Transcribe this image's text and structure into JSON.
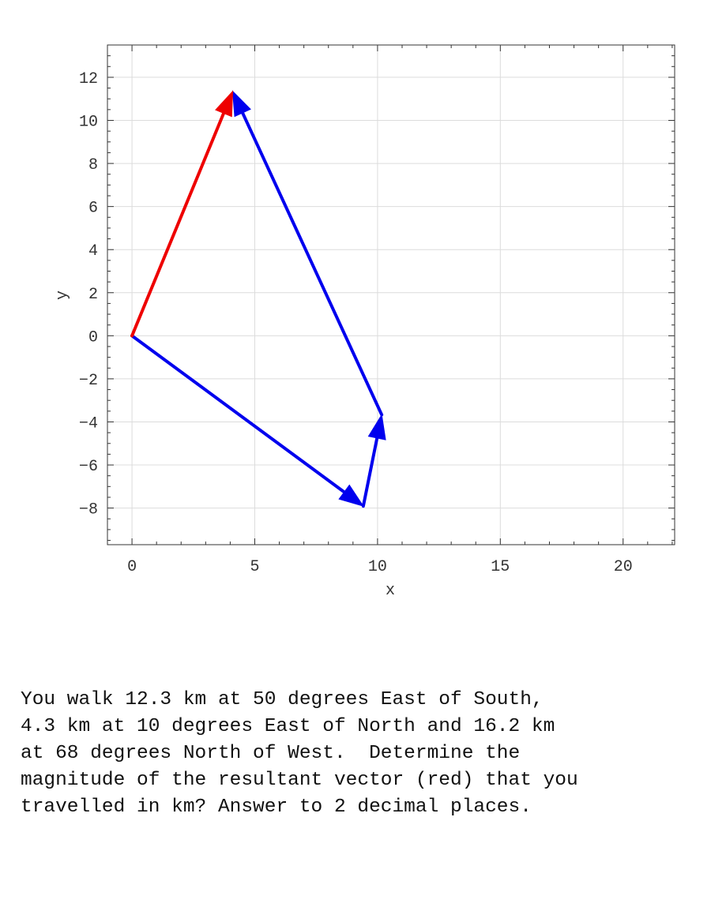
{
  "chart_data": {
    "type": "vector-plot",
    "xlabel": "x",
    "ylabel": "y",
    "xlim": [
      -1,
      22.1
    ],
    "ylim": [
      -9.7,
      13.5
    ],
    "xticks": [
      0,
      5,
      10,
      15,
      20
    ],
    "yticks": [
      -8,
      -6,
      -4,
      -2,
      0,
      2,
      4,
      6,
      8,
      10,
      12
    ],
    "xtick_labels": [
      "0",
      "5",
      "10",
      "15",
      "20"
    ],
    "ytick_labels": [
      "−8",
      "−6",
      "−4",
      "−2",
      "0",
      "2",
      "4",
      "6",
      "8",
      "10",
      "12"
    ],
    "grid": true,
    "vectors": [
      {
        "from": [
          0,
          0
        ],
        "to": [
          9.42,
          -7.91
        ],
        "color": "#0000ee"
      },
      {
        "from": [
          9.42,
          -7.91
        ],
        "to": [
          10.17,
          -3.67
        ],
        "color": "#0000ee"
      },
      {
        "from": [
          10.17,
          -3.67
        ],
        "to": [
          4.1,
          11.35
        ],
        "color": "#0000ee"
      },
      {
        "from": [
          0,
          0
        ],
        "to": [
          4.1,
          11.35
        ],
        "color": "#ee0000"
      }
    ]
  },
  "question": {
    "text": "You walk 12.3 km at 50 degrees East of South,\n4.3 km at 10 degrees East of North and 16.2 km\nat 68 degrees North of West.  Determine the\nmagnitude of the resultant vector (red) that you\ntravelled in km? Answer to 2 decimal places."
  }
}
